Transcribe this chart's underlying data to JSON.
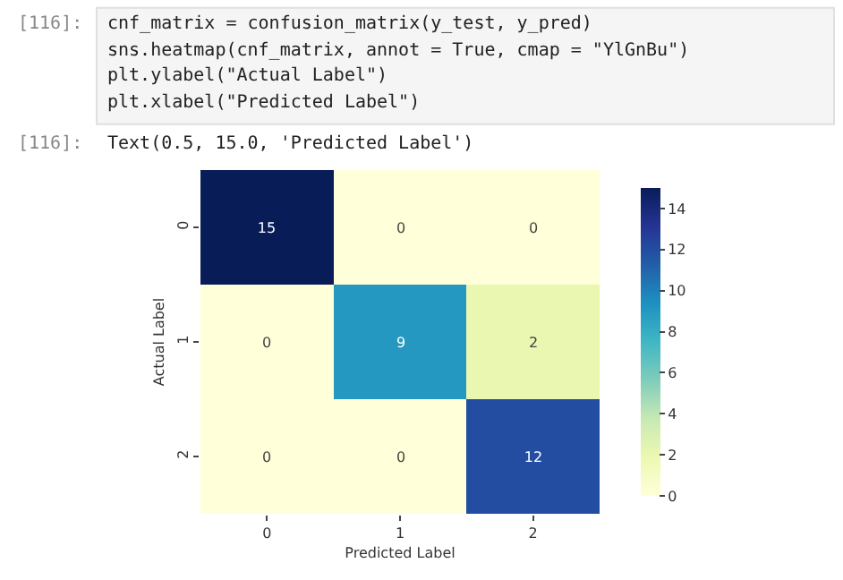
{
  "chart_data": {
    "type": "heatmap",
    "xlabel": "Predicted Label",
    "ylabel": "Actual Label",
    "categories": [
      "0",
      "1",
      "2"
    ],
    "y_categories": [
      "0",
      "1",
      "2"
    ],
    "cells": [
      [
        15,
        0,
        0
      ],
      [
        0,
        9,
        2
      ],
      [
        0,
        0,
        12
      ]
    ],
    "data_labels": true,
    "clim": [
      0,
      15
    ],
    "cticks": [
      0,
      2,
      4,
      6,
      8,
      10,
      12,
      14
    ],
    "annotations": [
      "[116]:",
      "cnf_matrix = confusion_matrix(y_test, y_pred)",
      "sns.heatmap(cnf_matrix, annot = True, cmap = \"YlGnBu\")",
      "plt.ylabel(\"Actual Label\")",
      "plt.xlabel(\"Predicted Label\")",
      "[116]:",
      "Text(0.5, 15.0, 'Predicted Label')"
    ]
  }
}
